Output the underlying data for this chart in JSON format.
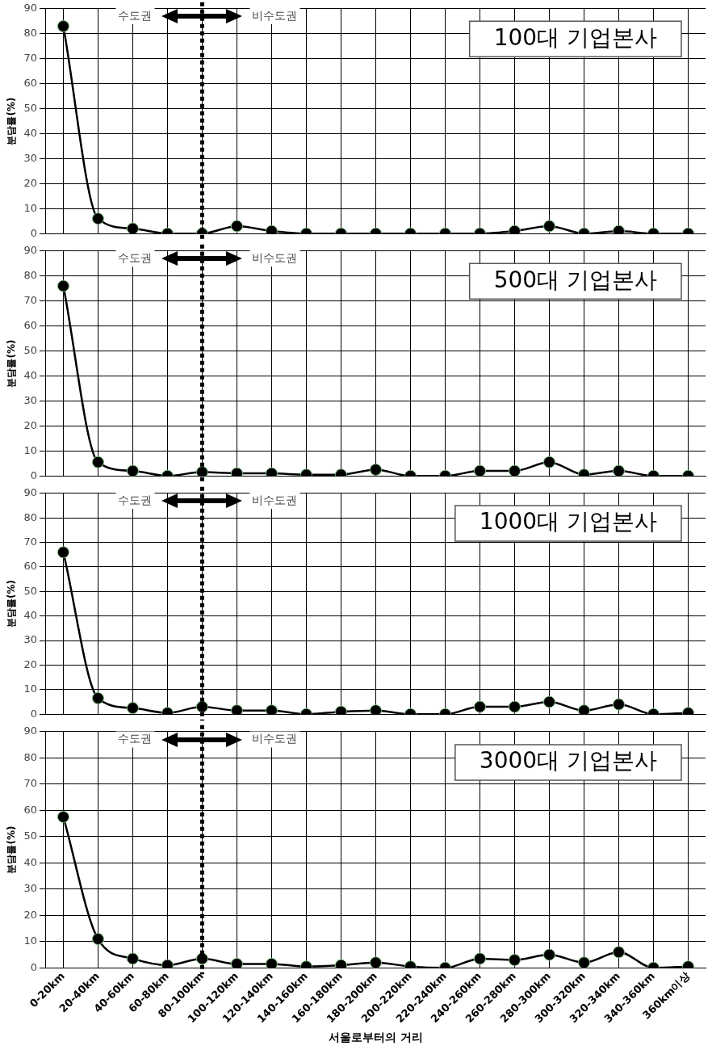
{
  "chart_data": [
    {
      "type": "line",
      "title": "100대 기업본사",
      "ylabel": "분담률(%)",
      "categories": [
        "0-20km",
        "20-40km",
        "40-60km",
        "60-80km",
        "80-100km",
        "100-120km",
        "120-140km",
        "140-160km",
        "160-180km",
        "180-200km",
        "200-220km",
        "220-240km",
        "240-260km",
        "260-280km",
        "280-300km",
        "300-320km",
        "320-340km",
        "340-360km",
        "360km이상"
      ],
      "series": [
        {
          "color": "#000000",
          "values": [
            83,
            6,
            2,
            0,
            0,
            3,
            1,
            0,
            0,
            0,
            0,
            0,
            0,
            1,
            3,
            0,
            1,
            0,
            0
          ]
        }
      ],
      "ylim": [
        0,
        90
      ],
      "yticks": [
        0,
        10,
        20,
        30,
        40,
        50,
        60,
        70,
        80,
        90
      ],
      "grid": true,
      "marker": "circle",
      "tick_labels": "y",
      "annotations": [
        "수도권",
        "비수도권"
      ],
      "ref_lines": [
        {
          "axis": "x",
          "value": "80-100km",
          "color": "#000000",
          "line_style": "dotted"
        }
      ]
    },
    {
      "type": "line",
      "title": "500대 기업본사",
      "ylabel": "분담률(%)",
      "categories": [
        "0-20km",
        "20-40km",
        "40-60km",
        "60-80km",
        "80-100km",
        "100-120km",
        "120-140km",
        "140-160km",
        "160-180km",
        "180-200km",
        "200-220km",
        "220-240km",
        "240-260km",
        "260-280km",
        "280-300km",
        "300-320km",
        "320-340km",
        "340-360km",
        "360km이상"
      ],
      "series": [
        {
          "color": "#000000",
          "values": [
            76,
            5.5,
            2,
            0,
            1.5,
            1,
            1,
            0.5,
            0.5,
            2.5,
            0,
            0,
            2,
            2,
            5.5,
            0.5,
            2,
            0,
            0
          ]
        }
      ],
      "ylim": [
        0,
        90
      ],
      "yticks": [
        0,
        10,
        20,
        30,
        40,
        50,
        60,
        70,
        80,
        90
      ],
      "grid": true,
      "marker": "circle",
      "tick_labels": "y",
      "annotations": [
        "수도권",
        "비수도권"
      ],
      "ref_lines": [
        {
          "axis": "x",
          "value": "80-100km",
          "color": "#000000",
          "line_style": "dotted"
        }
      ]
    },
    {
      "type": "line",
      "title": "1000대 기업본사",
      "ylabel": "분담률(%)",
      "categories": [
        "0-20km",
        "20-40km",
        "40-60km",
        "60-80km",
        "80-100km",
        "100-120km",
        "120-140km",
        "140-160km",
        "160-180km",
        "180-200km",
        "200-220km",
        "220-240km",
        "240-260km",
        "260-280km",
        "280-300km",
        "300-320km",
        "320-340km",
        "340-360km",
        "360km이상"
      ],
      "series": [
        {
          "color": "#000000",
          "values": [
            66,
            6.5,
            2.5,
            0.5,
            3,
            1.5,
            1.5,
            0,
            1,
            1.5,
            0,
            0,
            3,
            3,
            5,
            1.5,
            4,
            0,
            0.5
          ]
        }
      ],
      "ylim": [
        0,
        90
      ],
      "yticks": [
        0,
        10,
        20,
        30,
        40,
        50,
        60,
        70,
        80,
        90
      ],
      "grid": true,
      "marker": "circle",
      "tick_labels": "y",
      "annotations": [
        "수도권",
        "비수도권"
      ],
      "ref_lines": [
        {
          "axis": "x",
          "value": "80-100km",
          "color": "#000000",
          "line_style": "dotted"
        }
      ]
    },
    {
      "type": "line",
      "title": "3000대 기업본사",
      "ylabel": "분담률(%)",
      "xlabel": "서울로부터의 거리",
      "categories": [
        "0-20km",
        "20-40km",
        "40-60km",
        "60-80km",
        "80-100km",
        "100-120km",
        "120-140km",
        "140-160km",
        "160-180km",
        "180-200km",
        "200-220km",
        "220-240km",
        "240-260km",
        "260-280km",
        "280-300km",
        "300-320km",
        "320-340km",
        "340-360km",
        "360km이상"
      ],
      "series": [
        {
          "color": "#000000",
          "values": [
            57.5,
            11,
            3.5,
            1,
            3.5,
            1.5,
            1.5,
            0.5,
            1,
            2,
            0.5,
            0,
            3.5,
            3,
            5,
            2,
            6,
            0,
            0.5
          ]
        }
      ],
      "ylim": [
        0,
        90
      ],
      "yticks": [
        0,
        10,
        20,
        30,
        40,
        50,
        60,
        70,
        80,
        90
      ],
      "grid": true,
      "marker": "circle",
      "annotations": [
        "수도권",
        "비수도권"
      ],
      "ref_lines": [
        {
          "axis": "x",
          "value": "80-100km",
          "color": "#000000",
          "line_style": "dotted"
        }
      ]
    }
  ]
}
